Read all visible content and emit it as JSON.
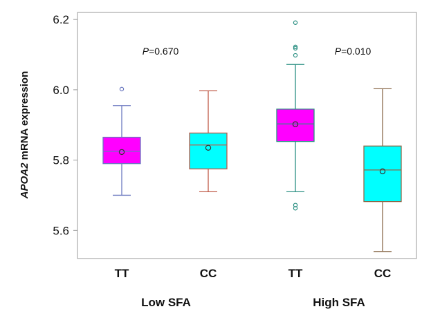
{
  "chart_data": {
    "type": "box",
    "ylabel_italic": "APOA2",
    "ylabel_rest": " mRNA expression",
    "yticks": [
      "5.6",
      "5.8",
      "6.0",
      "6.2"
    ],
    "ylim": [
      5.52,
      6.22
    ],
    "categories": [
      "TT",
      "CC",
      "TT",
      "CC"
    ],
    "groups": [
      {
        "label": "Low SFA",
        "annotation_p": "P",
        "annotation_value": "=0.670"
      },
      {
        "label": "High SFA",
        "annotation_p": "P",
        "annotation_value": "=0.010"
      }
    ],
    "boxes": [
      {
        "category": "TT",
        "group": "Low SFA",
        "min": 5.7,
        "q1": 5.79,
        "median": 5.825,
        "q3": 5.865,
        "max": 5.955,
        "mean": 5.823,
        "outliers": [
          6.002
        ],
        "fill": "#ff00ff",
        "stroke": "#6b78c0"
      },
      {
        "category": "CC",
        "group": "Low SFA",
        "min": 5.71,
        "q1": 5.775,
        "median": 5.843,
        "q3": 5.877,
        "max": 5.997,
        "mean": 5.835,
        "outliers": [],
        "fill": "#00ffff",
        "stroke": "#c05a48"
      },
      {
        "category": "TT",
        "group": "High SFA",
        "min": 5.71,
        "q1": 5.853,
        "median": 5.903,
        "q3": 5.945,
        "max": 6.072,
        "mean": 5.902,
        "outliers": [
          5.663,
          5.672,
          6.098,
          6.118,
          6.122,
          6.191
        ],
        "fill": "#ff00ff",
        "stroke": "#2a8f82"
      },
      {
        "category": "CC",
        "group": "High SFA",
        "min": 5.54,
        "q1": 5.682,
        "median": 5.772,
        "q3": 5.84,
        "max": 6.003,
        "mean": 5.768,
        "outliers": [],
        "fill": "#00ffff",
        "stroke": "#8a6a4a"
      }
    ]
  }
}
